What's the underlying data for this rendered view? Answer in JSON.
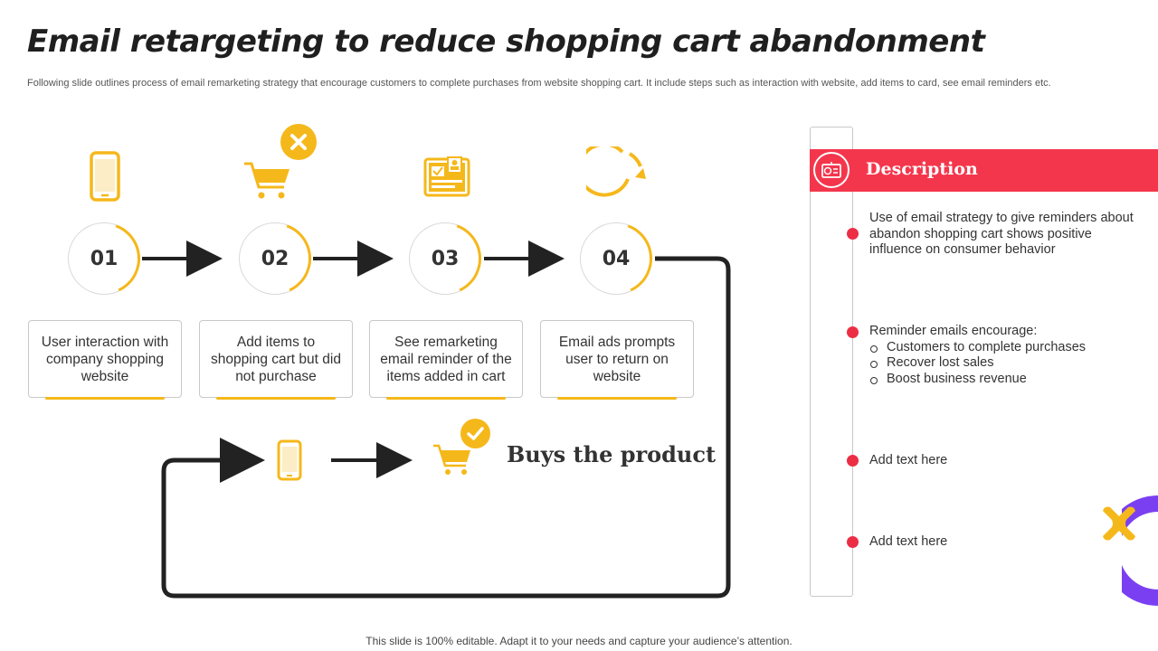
{
  "title": "Email retargeting to reduce shopping cart abandonment",
  "subtitle": "Following slide outlines process of email remarketing strategy that encourage customers to complete purchases from website shopping cart. It include steps such as interaction with website, add items to card, see email reminders etc.",
  "steps": [
    {
      "number": "01",
      "text": "User interaction with company shopping website",
      "icon": "mobile-phone-icon"
    },
    {
      "number": "02",
      "text": "Add items to shopping cart but did not purchase",
      "icon": "shopping-cart-icon"
    },
    {
      "number": "03",
      "text": "See remarketing email reminder of the items added in cart",
      "icon": "email-reminder-icon"
    },
    {
      "number": "04",
      "text": "Email ads prompts user to return on website",
      "icon": "refresh-icon"
    }
  ],
  "outcome": {
    "label": "Buys the product"
  },
  "description": {
    "title": "Description",
    "items": [
      {
        "text": "Use of email strategy to give reminders about abandon shopping cart shows positive influence on consumer behavior"
      },
      {
        "text": "Reminder emails encourage:",
        "sub": [
          "Customers to complete purchases",
          "Recover lost sales",
          "Boost business revenue"
        ]
      },
      {
        "text": "Add text here"
      },
      {
        "text": "Add text here"
      }
    ]
  },
  "footer": "This slide is 100% editable. Adapt it to your needs and capture your audience’s attention.",
  "colors": {
    "accent": "#f5b81b",
    "highlight": "#f4364c",
    "dark": "#222222",
    "purple": "#7b3ff2"
  }
}
